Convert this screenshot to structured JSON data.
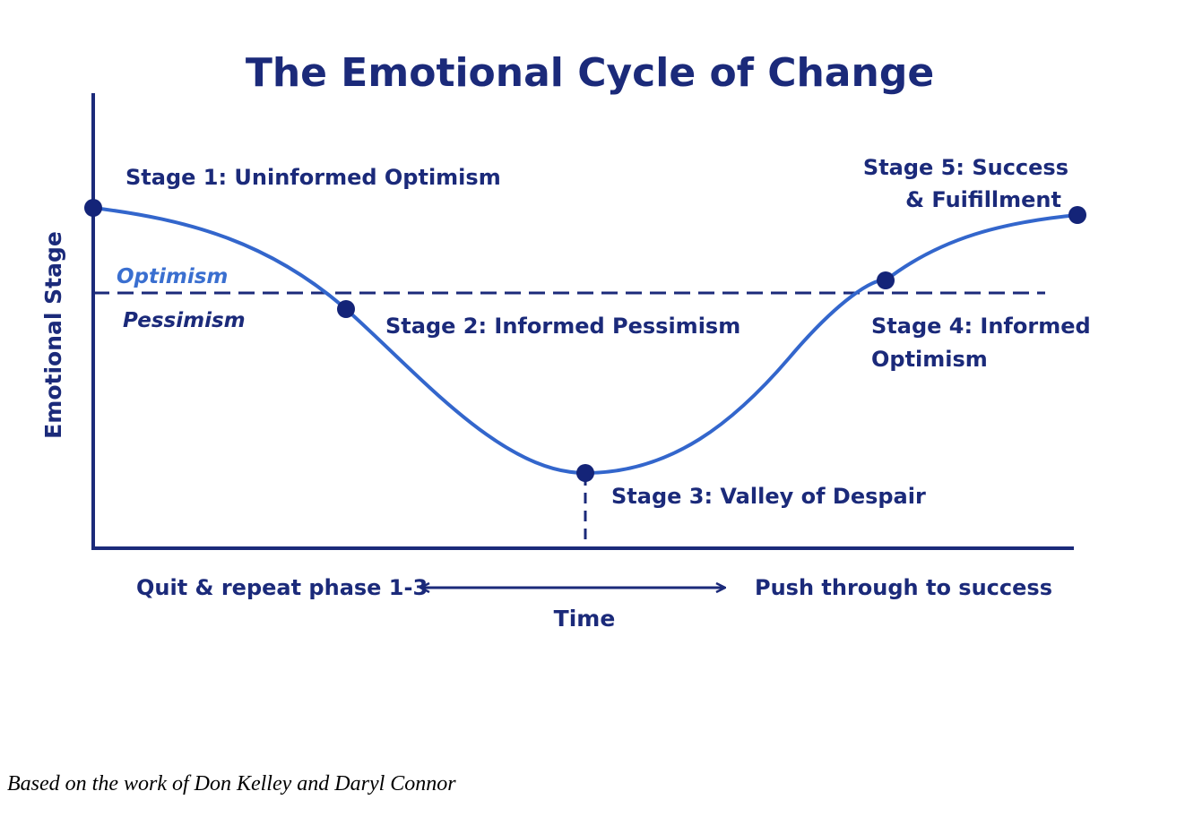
{
  "title": "The Emotional Cycle of Change",
  "y_axis_label": "Emotional Stage",
  "x_axis_label": "Time",
  "zones": {
    "upper": "Optimism",
    "lower": "Pessimism"
  },
  "stages": [
    {
      "line1": "Stage 1: Uninformed Optimism",
      "line2": ""
    },
    {
      "line1": "Stage 2: Informed Pessimism",
      "line2": ""
    },
    {
      "line1": "Stage 3: Valley of Despair",
      "line2": ""
    },
    {
      "line1": "Stage 4: Informed",
      "line2": "Optimism"
    },
    {
      "line1": "Stage 5: Success",
      "line2": "& Fuifillment"
    }
  ],
  "bottom_annotations": {
    "left": "Quit & repeat phase 1-3",
    "right": "Push through to success"
  },
  "footnote": "Based on the work of Don Kelley and Daryl Connor",
  "colors": {
    "dark_navy": "#1b2a7a",
    "curve_blue": "#3366cc",
    "optimism_blue": "#3a6fd0",
    "dot_navy": "#142478"
  }
}
